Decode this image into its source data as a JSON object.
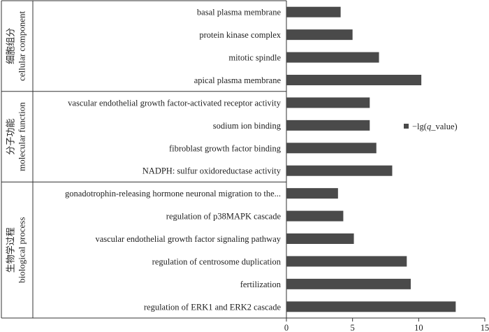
{
  "chart_data": {
    "type": "bar",
    "orientation": "horizontal",
    "categories": [
      "basal plasma membrane",
      "protein kinase complex",
      "mitotic spindle",
      "apical plasma membrane",
      "vascular endothelial growth factor-activated receptor activity",
      "sodium ion binding",
      "fibroblast growth factor binding",
      "NADPH: sulfur oxidoreductase activity",
      "gonadotrophin-releasing hormone neuronal migration to the...",
      "regulation of p38MAPK cascade",
      "vascular endothelial growth factor signaling pathway",
      "regulation of centrosome duplication",
      "fertilization",
      "regulation of ERK1 and ERK2 cascade"
    ],
    "series": [
      {
        "name": "−lg(q_value)",
        "values": [
          4.1,
          5.0,
          7.0,
          10.2,
          6.3,
          6.3,
          6.8,
          8.0,
          3.9,
          4.3,
          5.1,
          9.1,
          9.4,
          12.8
        ]
      }
    ],
    "groups": [
      {
        "label_zh": "细胞组分",
        "label_en": "cellular component",
        "start": 0,
        "end": 3
      },
      {
        "label_zh": "分子功能",
        "label_en": "molecular function",
        "start": 4,
        "end": 7
      },
      {
        "label_zh": "生物学过程",
        "label_en": "biological process",
        "start": 8,
        "end": 13
      }
    ],
    "xlim": [
      0,
      15
    ],
    "xticks": [
      0,
      5,
      10,
      15
    ],
    "legend_position": "right",
    "grid": false,
    "bar_color": "#4a4a4a"
  }
}
